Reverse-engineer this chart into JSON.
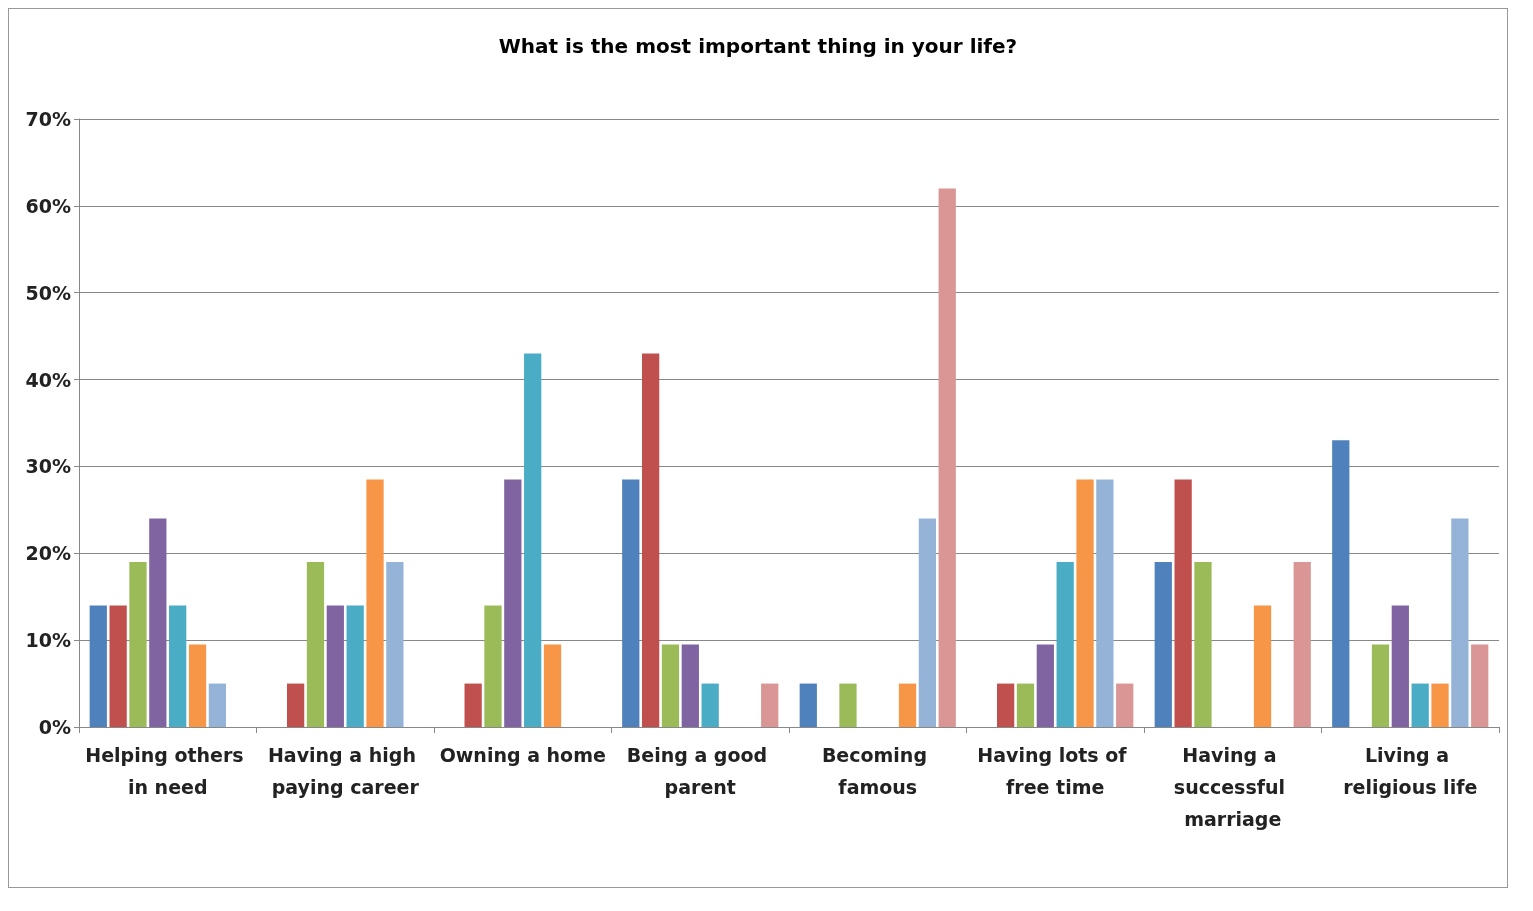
{
  "chart_data": {
    "type": "bar",
    "title": "What is the most important thing in your life?",
    "categories": [
      "Helping others in need",
      "Having a high paying career",
      "Owning a home",
      "Being a good parent",
      "Becoming famous",
      "Having lots of free time",
      "Having a successful marriage",
      "Living a religious life"
    ],
    "series": [
      {
        "color": "#4f81bd",
        "values": [
          14,
          0,
          0,
          28.5,
          5,
          0,
          19,
          33
        ]
      },
      {
        "color": "#c0504d",
        "values": [
          14,
          5,
          5,
          43,
          0,
          5,
          28.5,
          0
        ]
      },
      {
        "color": "#9bbb59",
        "values": [
          19,
          19,
          14,
          9.5,
          5,
          5,
          19,
          9.5
        ]
      },
      {
        "color": "#8064a2",
        "values": [
          24,
          14,
          28.5,
          9.5,
          0,
          9.5,
          0,
          14
        ]
      },
      {
        "color": "#4bacc6",
        "values": [
          14,
          14,
          43,
          5,
          0,
          19,
          0,
          5
        ]
      },
      {
        "color": "#f79646",
        "values": [
          9.5,
          28.5,
          9.5,
          0,
          5,
          28.5,
          14,
          5
        ]
      },
      {
        "color": "#95b3d7",
        "values": [
          5,
          19,
          0,
          0,
          24,
          28.5,
          0,
          24
        ]
      },
      {
        "color": "#d99694",
        "values": [
          0,
          0,
          0,
          5,
          62,
          5,
          19,
          9.5
        ]
      }
    ],
    "ylim": [
      0,
      70
    ],
    "yticks": [
      {
        "value": 0,
        "label": "0%"
      },
      {
        "value": 10,
        "label": "10%"
      },
      {
        "value": 20,
        "label": "20%"
      },
      {
        "value": 30,
        "label": "30%"
      },
      {
        "value": 40,
        "label": "40%"
      },
      {
        "value": 50,
        "label": "50%"
      },
      {
        "value": 60,
        "label": "60%"
      },
      {
        "value": 70,
        "label": "70%"
      }
    ],
    "grid": "y"
  }
}
